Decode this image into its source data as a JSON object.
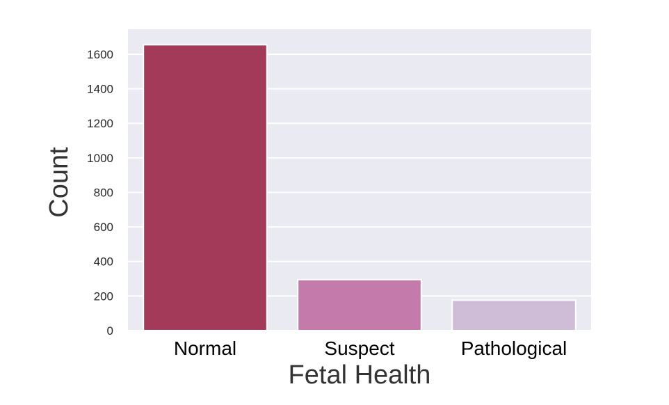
{
  "chart_data": {
    "type": "bar",
    "categories": [
      "Normal",
      "Suspect",
      "Pathological"
    ],
    "values": [
      1655,
      295,
      176
    ],
    "xlabel": "Fetal Health",
    "ylabel": "Count",
    "ylim": [
      0,
      1745
    ],
    "yticks": [
      0,
      200,
      400,
      600,
      800,
      1000,
      1200,
      1400,
      1600
    ],
    "grid": true,
    "legend": "none",
    "colors": [
      "#a33a5a",
      "#c47aaa",
      "#cfbcd6"
    ],
    "background": "#eaeaf2"
  }
}
